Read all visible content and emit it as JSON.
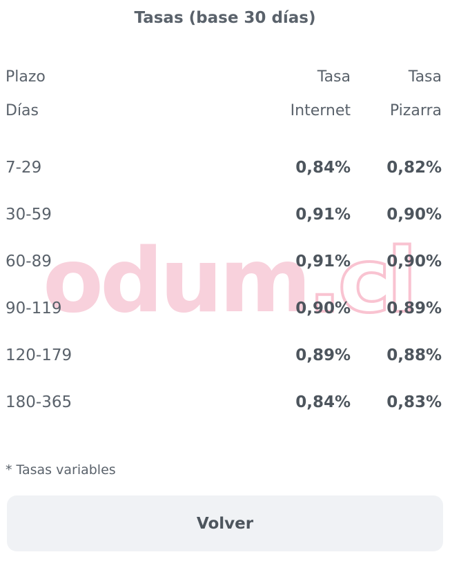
{
  "title": "Tasas (base 30 días)",
  "table": {
    "headers": {
      "plazo_line1": "Plazo",
      "plazo_line2": "Días",
      "internet_line1": "Tasa",
      "internet_line2": "Internet",
      "pizarra_line1": "Tasa",
      "pizarra_line2": "Pizarra"
    },
    "rows": [
      {
        "plazo": "7-29",
        "tasa_internet": "0,84%",
        "tasa_pizarra": "0,82%"
      },
      {
        "plazo": "30-59",
        "tasa_internet": "0,91%",
        "tasa_pizarra": "0,90%"
      },
      {
        "plazo": "60-89",
        "tasa_internet": "0,91%",
        "tasa_pizarra": "0,90%"
      },
      {
        "plazo": "90-119",
        "tasa_internet": "0,90%",
        "tasa_pizarra": "0,89%"
      },
      {
        "plazo": "120-179",
        "tasa_internet": "0,89%",
        "tasa_pizarra": "0,88%"
      },
      {
        "plazo": "180-365",
        "tasa_internet": "0,84%",
        "tasa_pizarra": "0,83%"
      }
    ]
  },
  "footnote": "* Tasas variables",
  "button": {
    "label": "Volver"
  },
  "watermark": {
    "solid": "odum",
    "outline": ".cl"
  },
  "colors": {
    "text": "#5a626b",
    "text_dark": "#4d555d",
    "watermark_fill": "#f8d1dc",
    "watermark_stroke": "#f9c3d1",
    "button_background": "#f0f2f5",
    "background": "#ffffff"
  }
}
